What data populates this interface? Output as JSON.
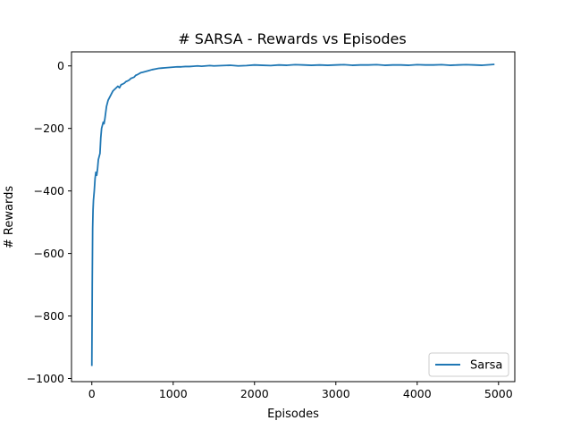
{
  "chart_data": {
    "type": "line",
    "title": "# SARSA - Rewards vs Episodes",
    "xlabel": "Episodes",
    "ylabel": "# Rewards",
    "xlim": [
      -250,
      5200
    ],
    "ylim": [
      -1010,
      45
    ],
    "xticks": [
      0,
      1000,
      2000,
      3000,
      4000,
      5000
    ],
    "yticks": [
      0,
      -200,
      -400,
      -600,
      -800,
      -1000
    ],
    "xtick_labels": [
      "0",
      "1000",
      "2000",
      "3000",
      "4000",
      "5000"
    ],
    "ytick_labels": [
      "0",
      "−200",
      "−400",
      "−600",
      "−800",
      "−1000"
    ],
    "grid": false,
    "legend_position": "lower-right",
    "series": [
      {
        "name": "Sarsa",
        "color": "#1f77b4",
        "x": [
          0,
          5,
          10,
          15,
          20,
          30,
          40,
          50,
          60,
          70,
          80,
          90,
          100,
          110,
          120,
          130,
          140,
          150,
          160,
          170,
          180,
          190,
          200,
          220,
          240,
          260,
          280,
          300,
          320,
          340,
          360,
          380,
          400,
          420,
          440,
          460,
          480,
          500,
          520,
          540,
          560,
          580,
          600,
          630,
          660,
          700,
          740,
          780,
          820,
          860,
          900,
          950,
          1000,
          1050,
          1100,
          1150,
          1200,
          1250,
          1300,
          1350,
          1400,
          1450,
          1500,
          1600,
          1700,
          1800,
          1900,
          2000,
          2100,
          2200,
          2300,
          2400,
          2500,
          2600,
          2700,
          2800,
          2900,
          3000,
          3100,
          3200,
          3300,
          3400,
          3500,
          3600,
          3700,
          3800,
          3900,
          4000,
          4100,
          4200,
          4300,
          4400,
          4500,
          4600,
          4700,
          4800,
          4900,
          4950
        ],
        "y": [
          -960,
          -700,
          -520,
          -460,
          -430,
          -400,
          -360,
          -340,
          -350,
          -330,
          -300,
          -290,
          -280,
          -230,
          -200,
          -190,
          -180,
          -185,
          -170,
          -150,
          -130,
          -120,
          -110,
          -100,
          -90,
          -80,
          -75,
          -70,
          -65,
          -70,
          -60,
          -58,
          -55,
          -50,
          -48,
          -45,
          -40,
          -38,
          -36,
          -30,
          -28,
          -25,
          -22,
          -20,
          -18,
          -15,
          -12,
          -10,
          -8,
          -7,
          -6,
          -5,
          -4,
          -3,
          -3,
          -2,
          -2,
          -1,
          0,
          -1,
          0,
          1,
          0,
          1,
          2,
          0,
          1,
          3,
          2,
          1,
          3,
          2,
          4,
          3,
          2,
          3,
          2,
          3,
          4,
          2,
          3,
          3,
          4,
          2,
          3,
          3,
          2,
          4,
          3,
          3,
          4,
          2,
          3,
          4,
          3,
          2,
          4,
          5
        ]
      }
    ]
  }
}
